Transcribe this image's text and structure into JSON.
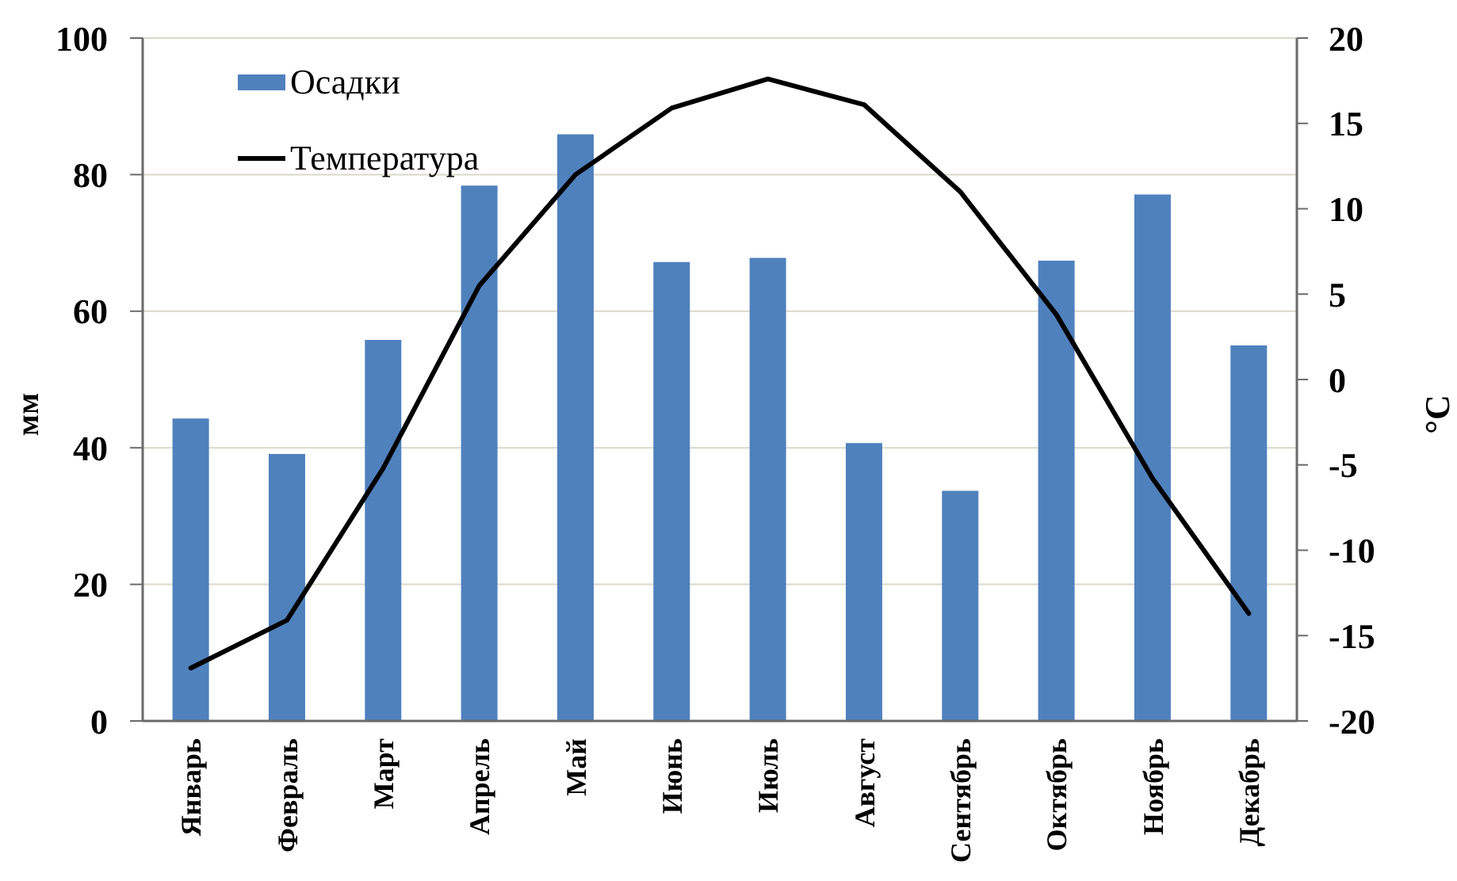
{
  "chart_data": {
    "type": "bar",
    "categories": [
      "Январь",
      "Февраль",
      "Март",
      "Апрель",
      "Май",
      "Июнь",
      "Июль",
      "Август",
      "Сентябрь",
      "Октябрь",
      "Ноябрь",
      "Декабрь"
    ],
    "series": [
      {
        "name": "Осадки",
        "color": "#4f81bd",
        "values": [
          44.3,
          39.1,
          55.8,
          78.4,
          85.9,
          67.2,
          67.8,
          40.7,
          33.7,
          67.4,
          77.1,
          55.0
        ]
      },
      {
        "name": "Температура",
        "type": "line",
        "axis": "y2",
        "color": "#000000",
        "values": [
          -16.9,
          -14.1,
          -5.2,
          5.5,
          12.0,
          15.9,
          17.6,
          16.1,
          11.0,
          3.8,
          -5.8,
          -13.7
        ]
      }
    ],
    "ylabel": "мм",
    "y2label": "°C",
    "ylim": [
      0,
      100
    ],
    "yticks": [
      0,
      20,
      40,
      60,
      80,
      100
    ],
    "y2lim": [
      -20,
      20
    ],
    "y2ticks": [
      -20,
      -15,
      -10,
      -5,
      0,
      5,
      10,
      15,
      20
    ],
    "grid": "y",
    "legend": "top left",
    "marker": "none",
    "line_style": "solid"
  }
}
